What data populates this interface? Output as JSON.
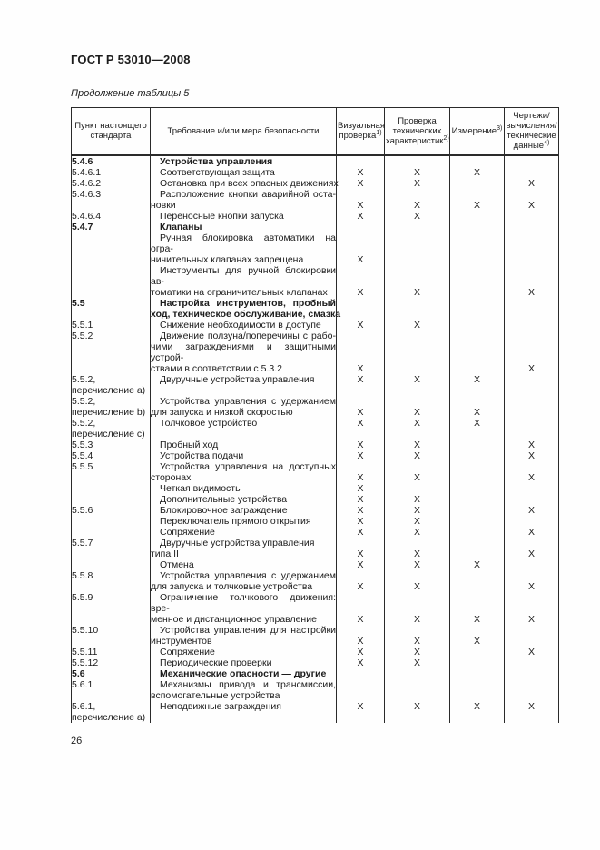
{
  "page": {
    "doc_number": "ГОСТ Р 53010—2008",
    "table_caption": "Продолжение таблицы 5",
    "page_number": "26"
  },
  "colors": {
    "background": "#fefefe",
    "text": "#1c1c1c",
    "border": "#2a2a2a"
  },
  "table": {
    "check_mark": "X",
    "columns": [
      {
        "label": "Пункт настоящего стандарта",
        "sup": ""
      },
      {
        "label": "Требование и/или мера безопасности",
        "sup": ""
      },
      {
        "label": "Визуальная проверка",
        "sup": "1)"
      },
      {
        "label": "Проверка технических характеристик",
        "sup": "2)"
      },
      {
        "label": "Измерение",
        "sup": "3)"
      },
      {
        "label": "Чертежи/ вычисления/ технические данные",
        "sup": "4)"
      }
    ],
    "lines": [
      {
        "n": "5.4.6",
        "nb": 1,
        "t": "Устройства управления",
        "b": 1,
        "i": 1,
        "g": 2
      },
      {
        "n": "5.4.6.1",
        "t": "Соответствующая защита",
        "i": 1,
        "g": 1,
        "x": [
          "X",
          "X",
          "X",
          ""
        ]
      },
      {
        "n": "5.4.6.2",
        "t": "Остановка при всех опасных движениях",
        "i": 1,
        "g": 1,
        "x": [
          "X",
          "X",
          "",
          "X"
        ]
      },
      {
        "n": "5.4.6.3",
        "t": "Расположение кнопки аварийной оста-",
        "i": 1,
        "j": 1,
        "g": 1
      },
      {
        "t": "новки",
        "x": [
          "X",
          "X",
          "X",
          "X"
        ]
      },
      {
        "n": "5.4.6.4",
        "t": "Переносные кнопки запуска",
        "i": 1,
        "g": 1,
        "x": [
          "X",
          "X",
          "",
          ""
        ]
      },
      {
        "n": "5.4.7",
        "nb": 1,
        "t": "Клапаны",
        "b": 1,
        "i": 1,
        "g": 2
      },
      {
        "t": "Ручная блокировка автоматики на огра-",
        "i": 1,
        "j": 1
      },
      {
        "t": "ничительных клапанах запрещена",
        "x": [
          "X",
          "",
          "",
          ""
        ]
      },
      {
        "t": "Инструменты для ручной блокировки ав-",
        "i": 1,
        "j": 1
      },
      {
        "t": "томатики на ограничительных клапанах",
        "x": [
          "X",
          "X",
          "",
          "X"
        ]
      },
      {
        "n": "5.5",
        "nb": 1,
        "t": "Настройка инструментов, пробный",
        "b": 1,
        "i": 1,
        "j": 1,
        "g": 2
      },
      {
        "t": "ход, техническое обслуживание, смазка",
        "b": 1
      },
      {
        "n": "5.5.1",
        "t": "Снижение необходимости в доступе",
        "i": 1,
        "g": 1,
        "x": [
          "X",
          "X",
          "",
          ""
        ]
      },
      {
        "n": "5.5.2",
        "t": "Движение ползуна/поперечины с рабо-",
        "i": 1,
        "j": 1,
        "g": 1
      },
      {
        "t": "чими заграждениями и защитными устрой-",
        "j": 1
      },
      {
        "t": "ствами в соответствии с 5.3.2",
        "x": [
          "X",
          "",
          "",
          "X"
        ]
      },
      {
        "n": "5.5.2,",
        "t": "Двуручные устройства управления",
        "i": 1,
        "g": 1,
        "x": [
          "X",
          "X",
          "X",
          ""
        ]
      },
      {
        "n": "перечисление a)"
      },
      {
        "n": "5.5.2,",
        "t": "Устройства управления с удержанием",
        "i": 1,
        "j": 1,
        "g": 1
      },
      {
        "n": "перечисление b)",
        "t": "для запуска и низкой скоростью",
        "x": [
          "X",
          "X",
          "X",
          ""
        ]
      },
      {
        "n": "5.5.2,",
        "t": "Толчковое устройство",
        "i": 1,
        "g": 1,
        "x": [
          "X",
          "X",
          "X",
          ""
        ]
      },
      {
        "n": "перечисление c)"
      },
      {
        "n": "5.5.3",
        "t": "Пробный ход",
        "i": 1,
        "g": 1,
        "x": [
          "X",
          "X",
          "",
          "X"
        ]
      },
      {
        "n": "5.5.4",
        "t": "Устройства подачи",
        "i": 1,
        "g": 1,
        "x": [
          "X",
          "X",
          "",
          "X"
        ]
      },
      {
        "n": "5.5.5",
        "t": "Устройства управления на доступных",
        "i": 1,
        "j": 1,
        "g": 1
      },
      {
        "t": "сторонах",
        "x": [
          "X",
          "X",
          "",
          "X"
        ]
      },
      {
        "t": "Четкая видимость",
        "i": 1,
        "x": [
          "X",
          "",
          "",
          ""
        ]
      },
      {
        "t": "Дополнительные устройства",
        "i": 1,
        "x": [
          "X",
          "X",
          "",
          ""
        ]
      },
      {
        "n": "5.5.6",
        "t": "Блокировочное заграждение",
        "i": 1,
        "g": 1,
        "x": [
          "X",
          "X",
          "",
          "X"
        ]
      },
      {
        "t": "Переключатель прямого открытия",
        "i": 1,
        "x": [
          "X",
          "X",
          "",
          ""
        ]
      },
      {
        "t": "Сопряжение",
        "i": 1,
        "x": [
          "X",
          "X",
          "",
          "X"
        ]
      },
      {
        "n": "5.5.7",
        "t": "Двуручные устройства управления",
        "i": 1,
        "g": 1
      },
      {
        "t": "типа II",
        "x": [
          "X",
          "X",
          "",
          "X"
        ]
      },
      {
        "t": "Отмена",
        "i": 1,
        "x": [
          "X",
          "X",
          "X",
          ""
        ]
      },
      {
        "n": "5.5.8",
        "t": "Устройства управления с удержанием",
        "i": 1,
        "j": 1,
        "g": 1
      },
      {
        "t": "для запуска и толчковые устройства",
        "x": [
          "X",
          "X",
          "",
          "X"
        ]
      },
      {
        "n": "5.5.9",
        "t": "Ограничение толчкового движения: вре-",
        "i": 1,
        "j": 1,
        "g": 1
      },
      {
        "t": "менное и дистанционное управление",
        "x": [
          "X",
          "X",
          "X",
          "X"
        ]
      },
      {
        "n": "5.5.10",
        "t": "Устройства управления для настройки",
        "i": 1,
        "j": 1,
        "g": 1
      },
      {
        "t": "инструментов",
        "x": [
          "X",
          "X",
          "X",
          ""
        ]
      },
      {
        "n": "5.5.11",
        "t": "Сопряжение",
        "i": 1,
        "g": 1,
        "x": [
          "X",
          "X",
          "",
          "X"
        ]
      },
      {
        "n": "5.5.12",
        "t": "Периодические проверки",
        "i": 1,
        "g": 1,
        "x": [
          "X",
          "X",
          "",
          ""
        ]
      },
      {
        "n": "5.6",
        "nb": 1,
        "t": "Механические опасности — другие",
        "b": 1,
        "i": 1,
        "g": 2
      },
      {
        "n": "5.6.1",
        "t": "Механизмы привода и трансмиссии,",
        "i": 1,
        "j": 1,
        "g": 1
      },
      {
        "t": "вспомогательные устройства"
      },
      {
        "n": "5.6.1,",
        "t": "Неподвижные заграждения",
        "i": 1,
        "g": 1,
        "x": [
          "X",
          "X",
          "X",
          "X"
        ]
      },
      {
        "n": "перечисление a)"
      }
    ]
  }
}
